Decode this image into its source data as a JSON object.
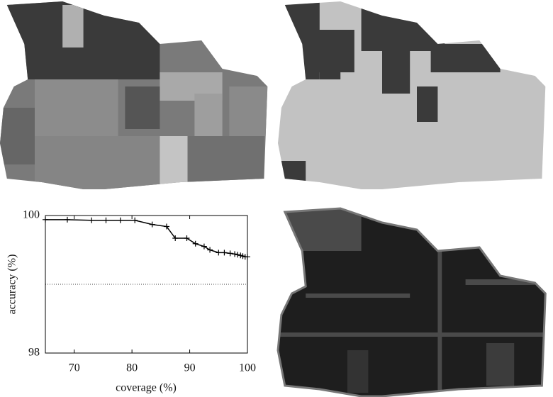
{
  "chart_data": {
    "type": "line",
    "xlabel": "coverage (%)",
    "ylabel": "accuracy (%)",
    "xlim": [
      65,
      100
    ],
    "ylim": [
      98,
      100
    ],
    "xticks": [
      70,
      80,
      90,
      100
    ],
    "yticks": [
      98,
      100
    ],
    "reference_line": 99,
    "series": [
      {
        "color": "#000000",
        "x": [
          65,
          68.8,
          73,
          75.5,
          78,
          80.5,
          83.5,
          86,
          87.5,
          89.5,
          91,
          92.5,
          93.5,
          95,
          96,
          97,
          97.8,
          98.3,
          98.8,
          99.2,
          99.6,
          100
        ],
        "values": [
          99.94,
          99.94,
          99.93,
          99.93,
          99.93,
          99.93,
          99.87,
          99.84,
          99.67,
          99.67,
          99.59,
          99.55,
          99.5,
          99.46,
          99.46,
          99.45,
          99.44,
          99.43,
          99.42,
          99.41,
          99.4,
          99.4
        ]
      }
    ]
  }
}
